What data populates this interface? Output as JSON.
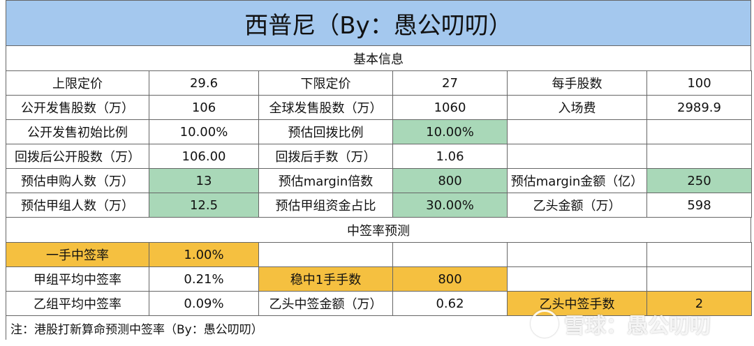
{
  "title": "西普尼（By：愚公叨叨）",
  "sections": {
    "basic": "基本信息",
    "prediction": "中签率预测"
  },
  "rows": [
    [
      {
        "text": "上限定价",
        "fill": ""
      },
      {
        "text": "29.6",
        "fill": ""
      },
      {
        "text": "下限定价",
        "fill": ""
      },
      {
        "text": "27",
        "fill": ""
      },
      {
        "text": "每手股数",
        "fill": ""
      },
      {
        "text": "100",
        "fill": ""
      }
    ],
    [
      {
        "text": "公开发售股数（万）",
        "fill": ""
      },
      {
        "text": "106",
        "fill": ""
      },
      {
        "text": "全球发售股数（万）",
        "fill": ""
      },
      {
        "text": "1060",
        "fill": ""
      },
      {
        "text": "入场费",
        "fill": ""
      },
      {
        "text": "2989.9",
        "fill": ""
      }
    ],
    [
      {
        "text": "公开发售初始比例",
        "fill": ""
      },
      {
        "text": "10.00%",
        "fill": ""
      },
      {
        "text": "预估回拨比例",
        "fill": ""
      },
      {
        "text": "10.00%",
        "fill": "green"
      },
      {
        "text": "",
        "fill": ""
      },
      {
        "text": "",
        "fill": ""
      }
    ],
    [
      {
        "text": "回拨后公开股数（万）",
        "fill": ""
      },
      {
        "text": "106.00",
        "fill": ""
      },
      {
        "text": "回拨后手数（万）",
        "fill": ""
      },
      {
        "text": "1.06",
        "fill": ""
      },
      {
        "text": "",
        "fill": ""
      },
      {
        "text": "",
        "fill": ""
      }
    ],
    [
      {
        "text": "预估申购人数（万）",
        "fill": ""
      },
      {
        "text": "13",
        "fill": "green"
      },
      {
        "text": "预估margin倍数",
        "fill": ""
      },
      {
        "text": "800",
        "fill": "green"
      },
      {
        "text": "预估margin金额（亿）",
        "fill": ""
      },
      {
        "text": "250",
        "fill": "green"
      }
    ],
    [
      {
        "text": "预估甲组人数（万）",
        "fill": ""
      },
      {
        "text": "12.5",
        "fill": "green"
      },
      {
        "text": "预估甲组资金占比",
        "fill": ""
      },
      {
        "text": "30.00%",
        "fill": "green"
      },
      {
        "text": "乙头金额（万）",
        "fill": ""
      },
      {
        "text": "598",
        "fill": ""
      }
    ]
  ],
  "rows2": [
    [
      {
        "text": "一手中签率",
        "fill": "yellow"
      },
      {
        "text": "1.00%",
        "fill": "yellow"
      },
      {
        "text": "",
        "fill": ""
      },
      {
        "text": "",
        "fill": ""
      },
      {
        "text": "",
        "fill": ""
      },
      {
        "text": "",
        "fill": ""
      }
    ],
    [
      {
        "text": "甲组平均中签率",
        "fill": ""
      },
      {
        "text": "0.21%",
        "fill": ""
      },
      {
        "text": "稳中1手手数",
        "fill": "yellow"
      },
      {
        "text": "800",
        "fill": "yellow"
      },
      {
        "text": "",
        "fill": ""
      },
      {
        "text": "",
        "fill": ""
      }
    ],
    [
      {
        "text": "乙组平均中签率",
        "fill": ""
      },
      {
        "text": "0.09%",
        "fill": ""
      },
      {
        "text": "乙头中签金额（万）",
        "fill": ""
      },
      {
        "text": "0.62",
        "fill": ""
      },
      {
        "text": "乙头中签手数",
        "fill": "yellow"
      },
      {
        "text": "2",
        "fill": "yellow"
      }
    ]
  ],
  "note": "注：港股打新算命预测中签率（By：愚公叨叨）",
  "watermark": "雪球：愚公叨叨",
  "colors": {
    "title_bg": "#a4c8ee",
    "green": "#a9d8b8",
    "yellow": "#f5c040"
  }
}
